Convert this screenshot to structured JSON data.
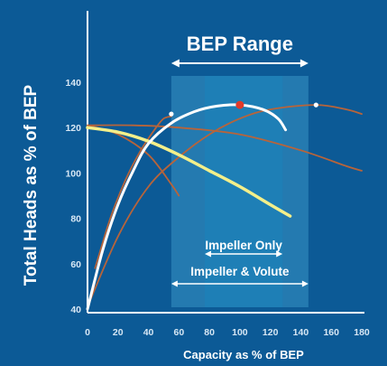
{
  "colors": {
    "background": "#0c5a96",
    "band_outer": "#2c86b8",
    "band_inner": "#1f7fb6",
    "axis": "#ffffff",
    "text": "#ffffff",
    "tick_text": "#d7e7f4",
    "series_white": "#ffffff",
    "series_yellow": "#f3ef8a",
    "series_brown": "#b8643a",
    "bep_marker": "#e03a2a"
  },
  "chart_data": {
    "type": "line",
    "title": "BEP Range",
    "xlabel": "Capacity as % of BEP",
    "ylabel": "Total Heads as % of BEP",
    "xlim": [
      0,
      180
    ],
    "ylim": [
      40,
      150
    ],
    "x_ticks": [
      0,
      20,
      40,
      60,
      80,
      100,
      120,
      140,
      160,
      180
    ],
    "y_ticks": [
      40,
      60,
      80,
      100,
      120,
      140
    ],
    "grid": false,
    "bep_range": {
      "start": 55,
      "end": 145
    },
    "inner_band": {
      "start": 77,
      "end": 128
    },
    "annotations": [
      {
        "text": "Impeller Only",
        "x_start": 77,
        "x_end": 128,
        "y": 64
      },
      {
        "text": "Impeller & Volute",
        "x_start": 55,
        "x_end": 145,
        "y": 48
      }
    ],
    "bep_point": {
      "x": 100,
      "y": 130
    },
    "series": [
      {
        "style": "white",
        "points": [
          [
            0,
            40
          ],
          [
            10,
            66
          ],
          [
            20,
            86
          ],
          [
            30,
            101
          ],
          [
            40,
            113
          ],
          [
            55,
            122
          ],
          [
            70,
            127
          ],
          [
            85,
            129.5
          ],
          [
            100,
            130
          ],
          [
            115,
            128
          ],
          [
            125,
            124
          ],
          [
            130,
            119
          ]
        ]
      },
      {
        "style": "yellow",
        "points": [
          [
            0,
            120
          ],
          [
            20,
            118
          ],
          [
            40,
            114
          ],
          [
            60,
            108
          ],
          [
            80,
            101
          ],
          [
            100,
            94
          ],
          [
            120,
            86
          ],
          [
            133,
            81
          ]
        ]
      },
      {
        "style": "brown",
        "points": [
          [
            0,
            121
          ],
          [
            20,
            117
          ],
          [
            40,
            108
          ],
          [
            55,
            95
          ],
          [
            60,
            90
          ]
        ]
      },
      {
        "style": "brown",
        "points": [
          [
            0,
            121
          ],
          [
            30,
            121
          ],
          [
            60,
            120
          ],
          [
            100,
            117
          ],
          [
            140,
            110
          ],
          [
            170,
            103
          ],
          [
            180,
            101
          ]
        ]
      },
      {
        "style": "brown",
        "points": [
          [
            5,
            58
          ],
          [
            15,
            80
          ],
          [
            25,
            97
          ],
          [
            35,
            110
          ],
          [
            45,
            120
          ],
          [
            50,
            124
          ],
          [
            55,
            125
          ]
        ]
      },
      {
        "style": "brown",
        "points": [
          [
            0,
            41
          ],
          [
            20,
            72
          ],
          [
            40,
            94
          ],
          [
            60,
            107
          ],
          [
            80,
            117
          ],
          [
            100,
            124
          ],
          [
            120,
            128
          ],
          [
            150,
            130
          ],
          [
            170,
            128
          ],
          [
            180,
            126
          ]
        ]
      }
    ],
    "white_markers": [
      {
        "x": 55,
        "y": 126
      },
      {
        "x": 150,
        "y": 130
      }
    ]
  }
}
